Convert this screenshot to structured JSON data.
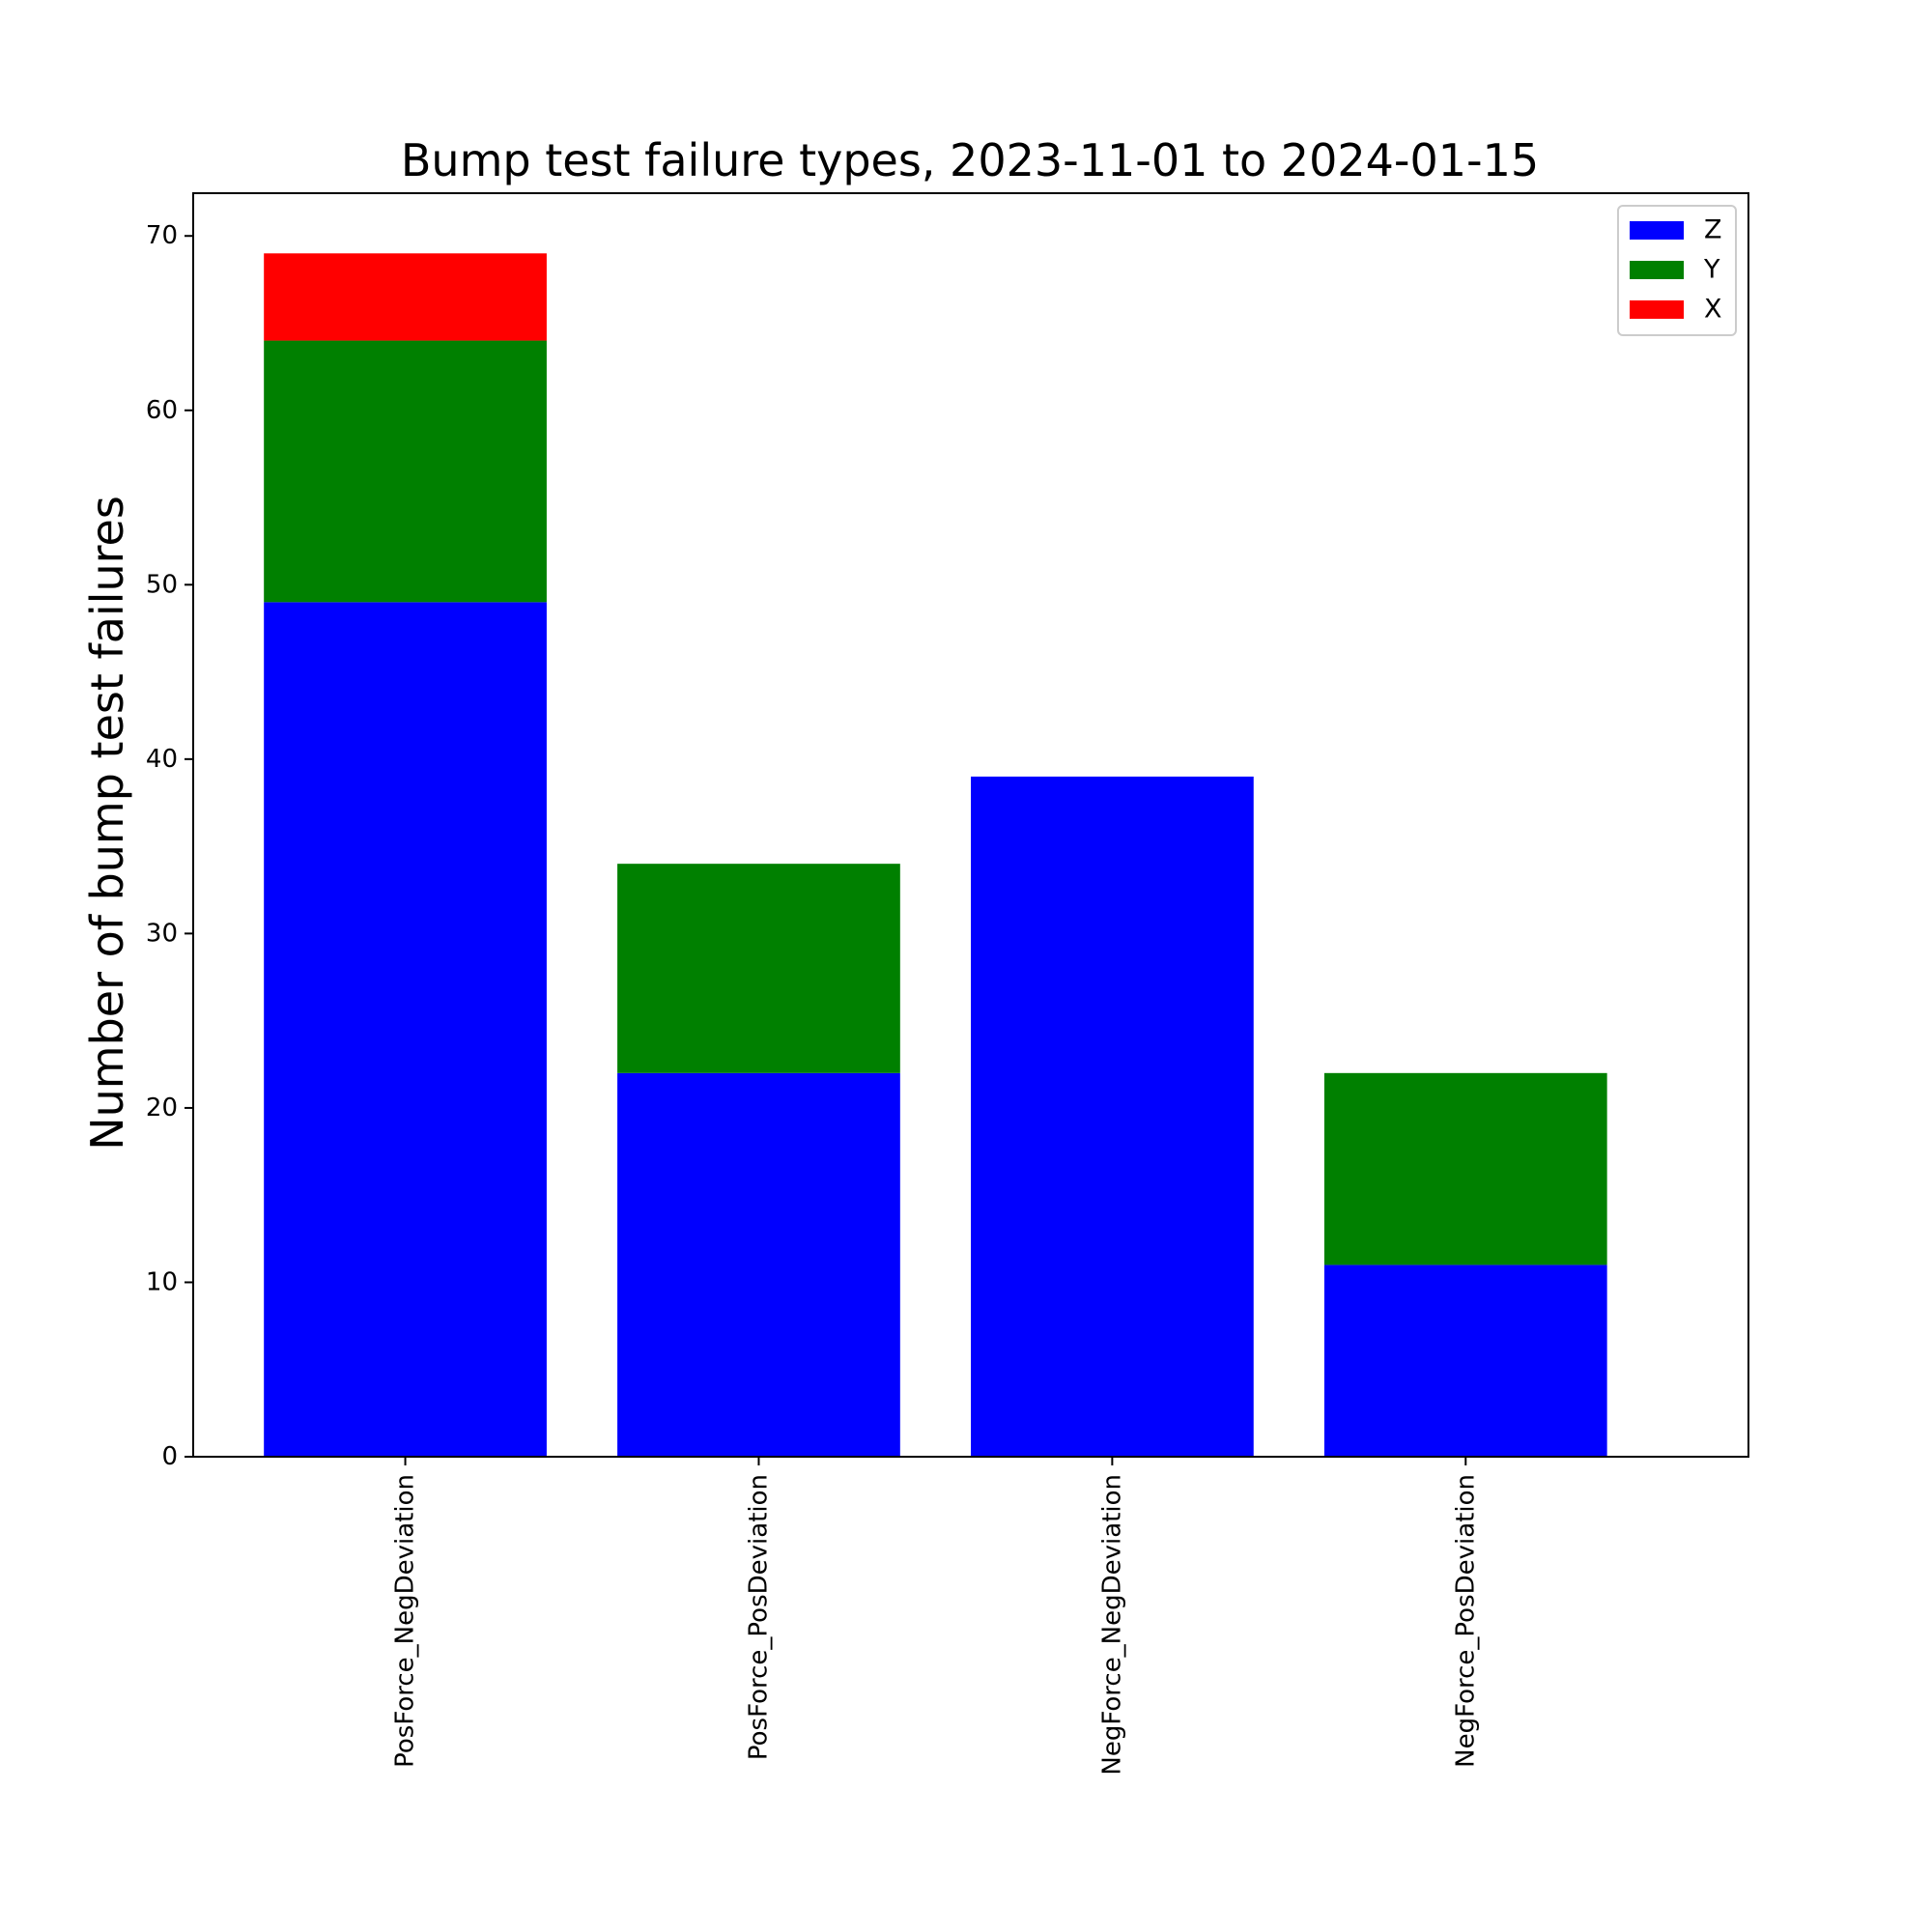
{
  "chart_data": {
    "type": "bar",
    "stacked": true,
    "title": "Bump test failure types, 2023-11-01 to 2024-01-15",
    "xlabel": "",
    "ylabel": "Number of bump test failures",
    "categories": [
      "PosForce_NegDeviation",
      "PosForce_PosDeviation",
      "NegForce_NegDeviation",
      "NegForce_PosDeviation"
    ],
    "series": [
      {
        "name": "Z",
        "color": "#0000ff",
        "values": [
          49,
          22,
          39,
          11
        ]
      },
      {
        "name": "Y",
        "color": "#008000",
        "values": [
          15,
          12,
          0,
          11
        ]
      },
      {
        "name": "X",
        "color": "#ff0000",
        "values": [
          5,
          0,
          0,
          0
        ]
      }
    ],
    "ylim": [
      0,
      72.45
    ],
    "yticks": [
      0,
      10,
      20,
      30,
      40,
      50,
      60,
      70
    ],
    "grid": false,
    "legend_position": "upper right",
    "xtick_rotation": "vertical"
  }
}
